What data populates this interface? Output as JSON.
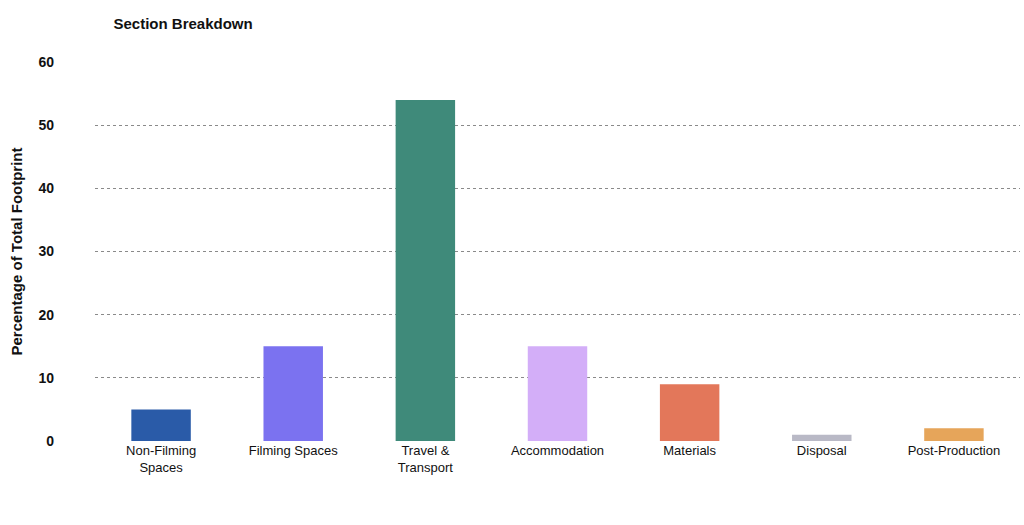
{
  "chart_data": {
    "type": "bar",
    "title": "Section Breakdown",
    "y_label": "Percentage of Total Footprint",
    "categories": [
      "Non-Filming Spaces",
      "Filming Spaces",
      "Travel & Transport",
      "Accommodation",
      "Materials",
      "Disposal",
      "Post-Production"
    ],
    "values": [
      5,
      15,
      54,
      15,
      9,
      1,
      2
    ],
    "colors": [
      "#2a5ba8",
      "#7b72f0",
      "#3f8a7a",
      "#d3aef8",
      "#e3775a",
      "#b9b9c6",
      "#e6a55a"
    ],
    "ylim": [
      0,
      60
    ],
    "yticks": [
      0,
      10,
      20,
      30,
      40,
      50,
      60
    ],
    "grid": true
  }
}
